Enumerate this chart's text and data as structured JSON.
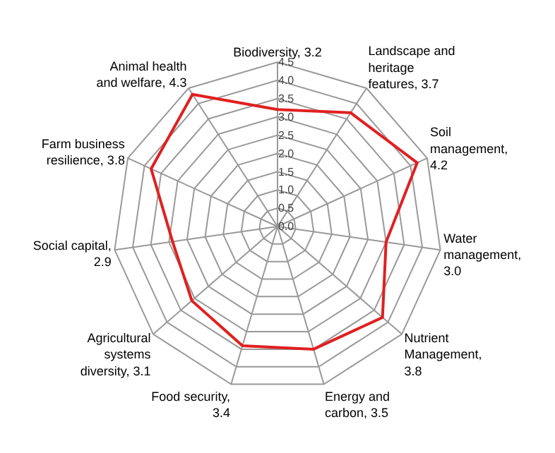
{
  "chart_data": {
    "type": "radar",
    "categories": [
      "Biodiversity, 3.2",
      "Landscape and\nheritage\nfeatures, 3.7",
      "Soil\nmanagement,\n4.2",
      "Water\nmanagement,\n3.0",
      "Nutrient\nManagement,\n3.8",
      "Energy and\ncarbon, 3.5",
      "Food security,\n3.4",
      "Agricultural\nsystems\ndiversity, 3.1",
      "Social capital,\n2.9",
      "Farm business\nresilience, 3.8",
      "Animal health\nand welfare, 4.3"
    ],
    "series": [
      {
        "color": "#e02020",
        "values": [
          3.2,
          3.7,
          4.2,
          3.0,
          3.8,
          3.5,
          3.4,
          3.1,
          2.9,
          3.8,
          4.3
        ]
      }
    ],
    "ylim": [
      0,
      4.5
    ],
    "yticks": [
      {
        "value": 0,
        "label": "0.0"
      },
      {
        "value": 0.5,
        "label": "0.5"
      },
      {
        "value": 1,
        "label": "1.0"
      },
      {
        "value": 1.5,
        "label": "1.5"
      },
      {
        "value": 2,
        "label": "2.0"
      },
      {
        "value": 2.5,
        "label": "2.5"
      },
      {
        "value": 3,
        "label": "3.0"
      },
      {
        "value": 3.5,
        "label": "3.5"
      },
      {
        "value": 4,
        "label": "4.0"
      },
      {
        "value": 4.5,
        "label": "4.5"
      }
    ],
    "grid": true,
    "marker": "none",
    "line_style": "solid",
    "legend": false
  }
}
